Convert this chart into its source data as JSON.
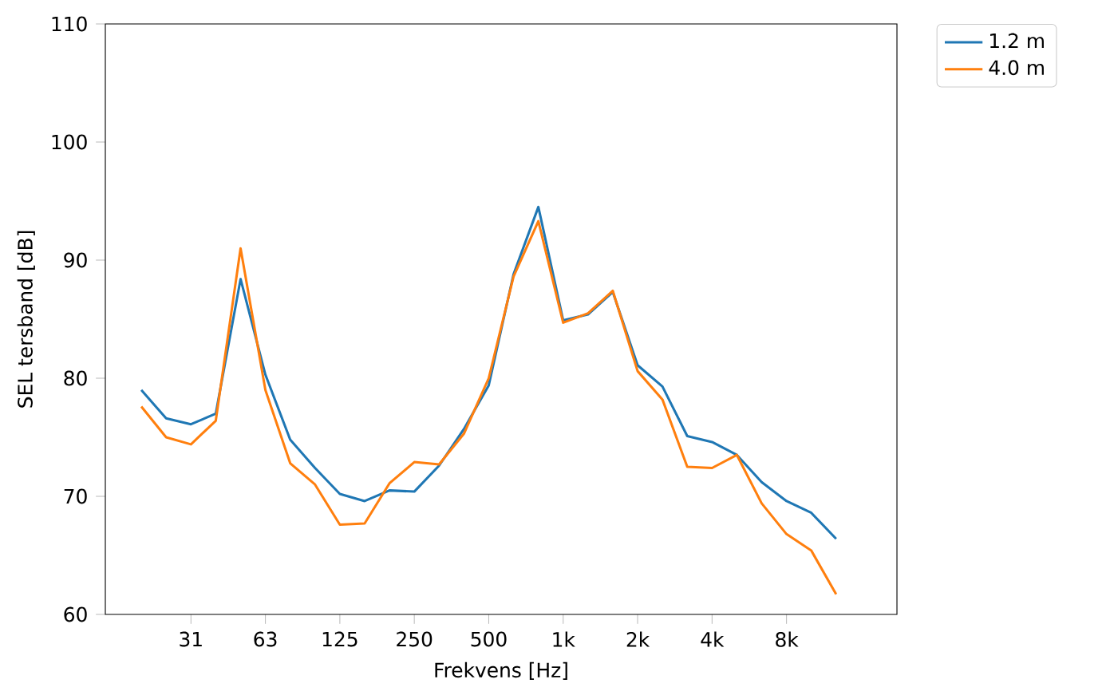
{
  "chart_data": {
    "type": "line",
    "xlabel": "Frekvens [Hz]",
    "ylabel": "SEL tersband [dB]",
    "categories": [
      null,
      null,
      "31",
      null,
      null,
      "63",
      null,
      null,
      "125",
      null,
      null,
      "250",
      null,
      null,
      "500",
      null,
      null,
      "1k",
      null,
      null,
      "2k",
      null,
      null,
      "4k",
      null,
      null,
      "8k",
      null,
      null,
      null
    ],
    "series": [
      {
        "name": "1.2 m",
        "color": "#1f77b4",
        "values": [
          79.0,
          76.6,
          76.1,
          77.0,
          88.4,
          80.3,
          74.8,
          72.4,
          70.2,
          69.6,
          70.5,
          70.4,
          72.6,
          75.7,
          79.4,
          88.8,
          94.5,
          84.9,
          85.4,
          87.3,
          81.1,
          79.3,
          75.1,
          74.6,
          73.5,
          71.2,
          69.6,
          68.6,
          66.4,
          null
        ]
      },
      {
        "name": "4.0 m",
        "color": "#ff7f0e",
        "values": [
          77.6,
          75.0,
          74.4,
          76.4,
          91.0,
          79.0,
          72.8,
          71.0,
          67.6,
          67.7,
          71.1,
          72.9,
          72.7,
          75.3,
          80.0,
          88.6,
          93.3,
          84.7,
          85.5,
          87.4,
          80.6,
          78.2,
          72.5,
          72.4,
          73.5,
          69.4,
          66.8,
          65.4,
          61.7,
          null
        ]
      }
    ],
    "ylim": [
      60,
      110
    ],
    "yticks": [
      60,
      70,
      80,
      90,
      100,
      110
    ],
    "legend": "top right",
    "grid": false,
    "marker": "none",
    "line_style": "solid"
  }
}
